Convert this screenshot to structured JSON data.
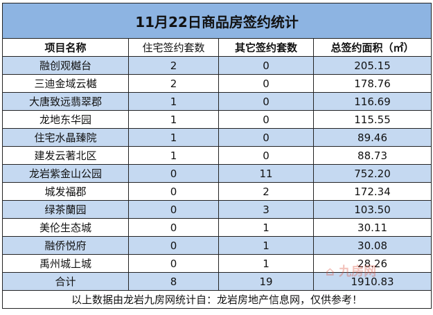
{
  "title": "11月22日商品房签约统计",
  "headers": [
    "项目名称",
    "住宅签约套数",
    "其它签约套数",
    "总签约面积（㎡）"
  ],
  "rows": [
    [
      "融创观樾台",
      "2",
      "0",
      "205.15"
    ],
    [
      "三迪金域云樾",
      "2",
      "0",
      "178.76"
    ],
    [
      "大唐致远翡翠郡",
      "1",
      "0",
      "116.69"
    ],
    [
      "龙地东华园",
      "1",
      "0",
      "115.55"
    ],
    [
      "住宅水晶臻院",
      "1",
      "0",
      "89.46"
    ],
    [
      "建发云著北区",
      "1",
      "0",
      "88.73"
    ],
    [
      "龙岩紫金山公园",
      "0",
      "11",
      "752.20"
    ],
    [
      "城发福郡",
      "0",
      "2",
      "172.34"
    ],
    [
      "绿茶蘭园",
      "0",
      "3",
      "103.50"
    ],
    [
      "美伦生态城",
      "0",
      "1",
      "30.11"
    ],
    [
      "融侨悦府",
      "0",
      "1",
      "30.08"
    ],
    [
      "禹州城上城",
      "0",
      "1",
      "28.26"
    ]
  ],
  "total": [
    "合计",
    "8",
    "19",
    "1910.83"
  ],
  "footer": "以上数据由龙岩九房网统计自：龙岩房地产信息网，仅供参考！",
  "watermark": "九房网",
  "colors": {
    "title_bg": "#8db4e2",
    "alt_row_bg": "#c5d9f1"
  }
}
